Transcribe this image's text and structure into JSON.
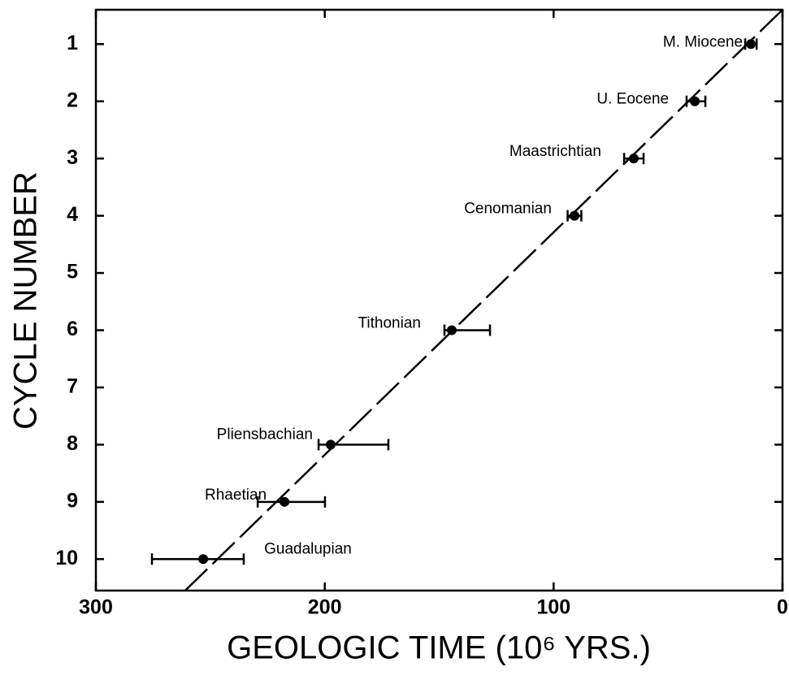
{
  "chart_data": {
    "type": "scatter",
    "xlabel": "GEOLOGIC  TIME  (10⁶ YRS.)",
    "ylabel": "CYCLE NUMBER",
    "xlim": [
      300,
      0
    ],
    "xticks": [
      300,
      200,
      100,
      0
    ],
    "ylim": [
      10.55,
      0.4
    ],
    "yticks": [
      1,
      2,
      3,
      4,
      5,
      6,
      7,
      8,
      9,
      10
    ],
    "color": "#000000",
    "series": [
      {
        "x": [
          13.8,
          38.3,
          65,
          90.9,
          144.5,
          197.4,
          217.6,
          253.1
        ],
        "y": [
          1,
          2,
          3,
          4,
          6,
          8,
          9,
          10
        ],
        "err_older": [
          2.5,
          3.6,
          4.2,
          3,
          3.2,
          5.3,
          11.7,
          22.4
        ],
        "err_younger": [
          2.5,
          4.6,
          4.3,
          3,
          16.7,
          25.2,
          17.7,
          17.7
        ],
        "labels": [
          "M. Miocene",
          "U. Eocene",
          "Maastrichtian",
          "Cenomanian",
          "Tithonian",
          "Pliensbachian",
          "Rhaetian",
          "Guadalupian"
        ]
      }
    ],
    "fit_line": {
      "x": [
        261,
        0
      ],
      "y": [
        10.55,
        0.4
      ]
    }
  }
}
